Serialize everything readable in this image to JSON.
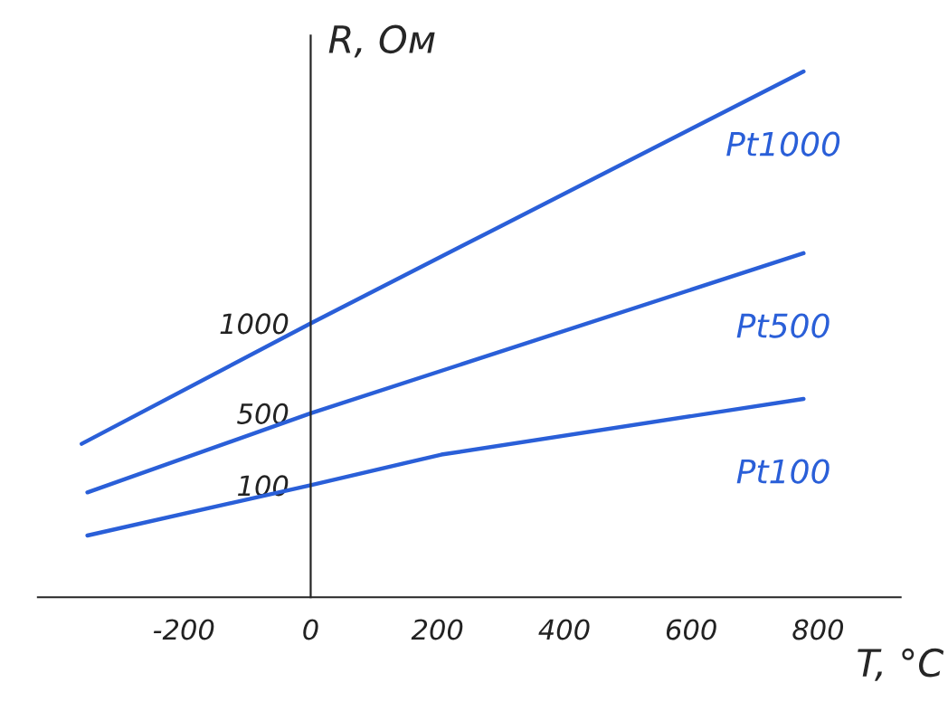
{
  "chart_data": {
    "type": "line",
    "xlabel": "T, °C",
    "ylabel": "R, Ом",
    "xlim": [
      -430,
      930
    ],
    "ylim": [
      -523,
      2600
    ],
    "xticks": [
      -200,
      0,
      200,
      400,
      600,
      800
    ],
    "yticks": [
      100,
      500,
      1000
    ],
    "grid": false,
    "legend": false,
    "marker": "none",
    "line_style": "solid",
    "series": [
      {
        "name": "Pt1000",
        "color": "#2a5fd8",
        "x": [
          -361,
          0,
          777
        ],
        "values": [
          330,
          1000,
          2400
        ]
      },
      {
        "name": "Pt500",
        "color": "#2a5fd8",
        "x": [
          -352,
          0,
          777
        ],
        "values": [
          60,
          500,
          1390
        ]
      },
      {
        "name": "Pt100",
        "color": "#2a5fd8",
        "x": [
          -352,
          0,
          206,
          777
        ],
        "values": [
          -180,
          100,
          270,
          580
        ]
      }
    ]
  }
}
